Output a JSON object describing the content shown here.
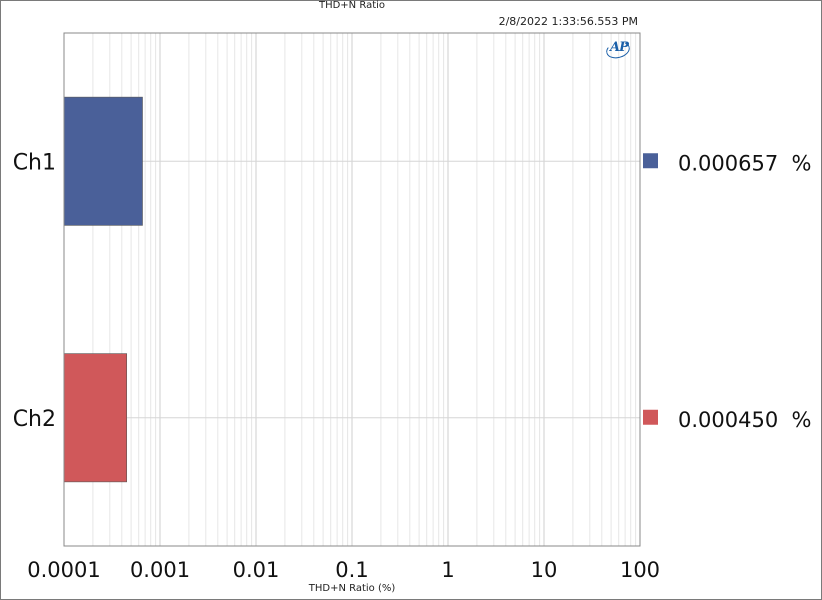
{
  "header": {
    "title": "THD+N Ratio",
    "timestamp": "2/8/2022 1:33:56.553 PM"
  },
  "logo": {
    "text": "AP",
    "icon": "ap-logo-icon"
  },
  "colors": {
    "ch1": "#4a6099",
    "ch2": "#d0585a",
    "grid": "#dcdcdc",
    "axis": "#888888"
  },
  "chart_data": {
    "type": "bar",
    "orientation": "horizontal",
    "title": "THD+N Ratio",
    "xlabel": "THD+N Ratio (%)",
    "ylabel": "",
    "x_scale": "log",
    "xlim": [
      0.0001,
      100
    ],
    "x_ticks": [
      "0.0001",
      "0.001",
      "0.01",
      "0.1",
      "1",
      "10",
      "100"
    ],
    "categories": [
      "Ch1",
      "Ch2"
    ],
    "values": [
      0.000657,
      0.00045
    ],
    "value_labels": [
      "0.000657  %",
      "0.000450  %"
    ],
    "grid": true,
    "legend_position": "right"
  }
}
